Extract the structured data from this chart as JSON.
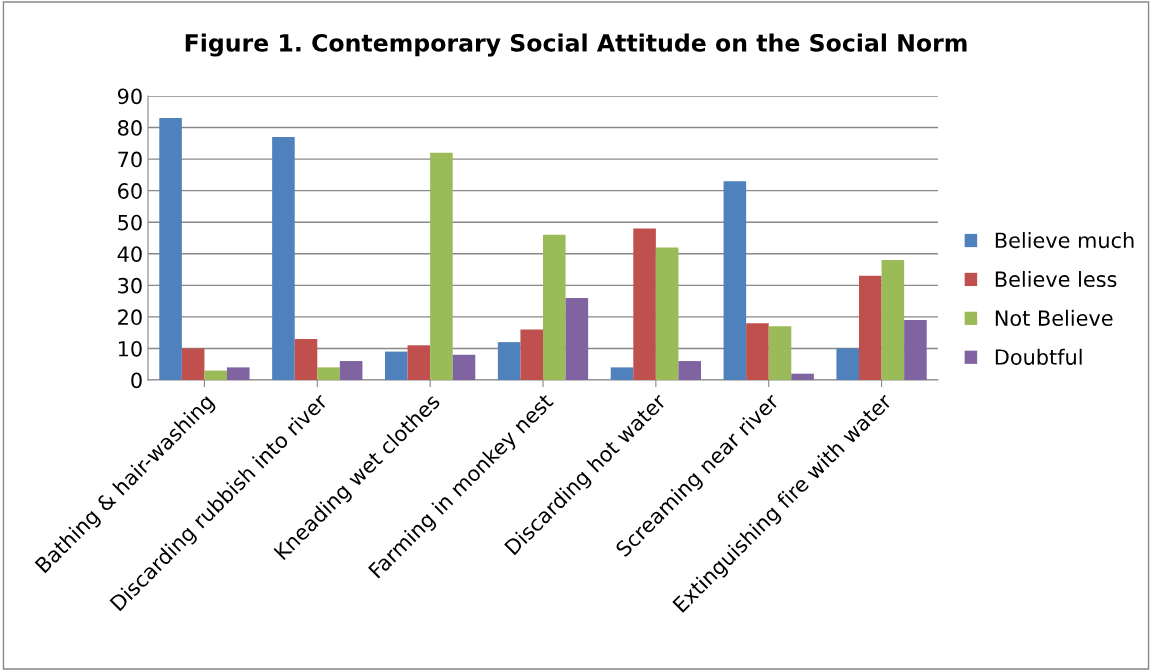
{
  "chart_data": {
    "type": "bar",
    "title": "Figure 1. Contemporary Social Attitude on the Social Norm",
    "categories": [
      "Bathing & hair-washing",
      "Discarding rubbish into river",
      "Kneading wet clothes",
      "Farming in monkey nest",
      "Discarding hot water",
      "Screaming near river",
      "Extinguishing fire with water"
    ],
    "series": [
      {
        "name": "Believe much",
        "color": "#4f81bd",
        "values": [
          83,
          77,
          9,
          12,
          4,
          63,
          10
        ]
      },
      {
        "name": "Believe less",
        "color": "#c0504d",
        "values": [
          10,
          13,
          11,
          16,
          48,
          18,
          33
        ]
      },
      {
        "name": "Not Believe",
        "color": "#9bbb59",
        "values": [
          3,
          4,
          72,
          46,
          42,
          17,
          38
        ]
      },
      {
        "name": "Doubtful",
        "color": "#8064a2",
        "values": [
          4,
          6,
          8,
          26,
          6,
          2,
          19
        ]
      }
    ],
    "ylim": [
      0,
      90
    ],
    "yticks": [
      0,
      10,
      20,
      30,
      40,
      50,
      60,
      70,
      80,
      90
    ],
    "grid": "y",
    "legend": "right"
  }
}
